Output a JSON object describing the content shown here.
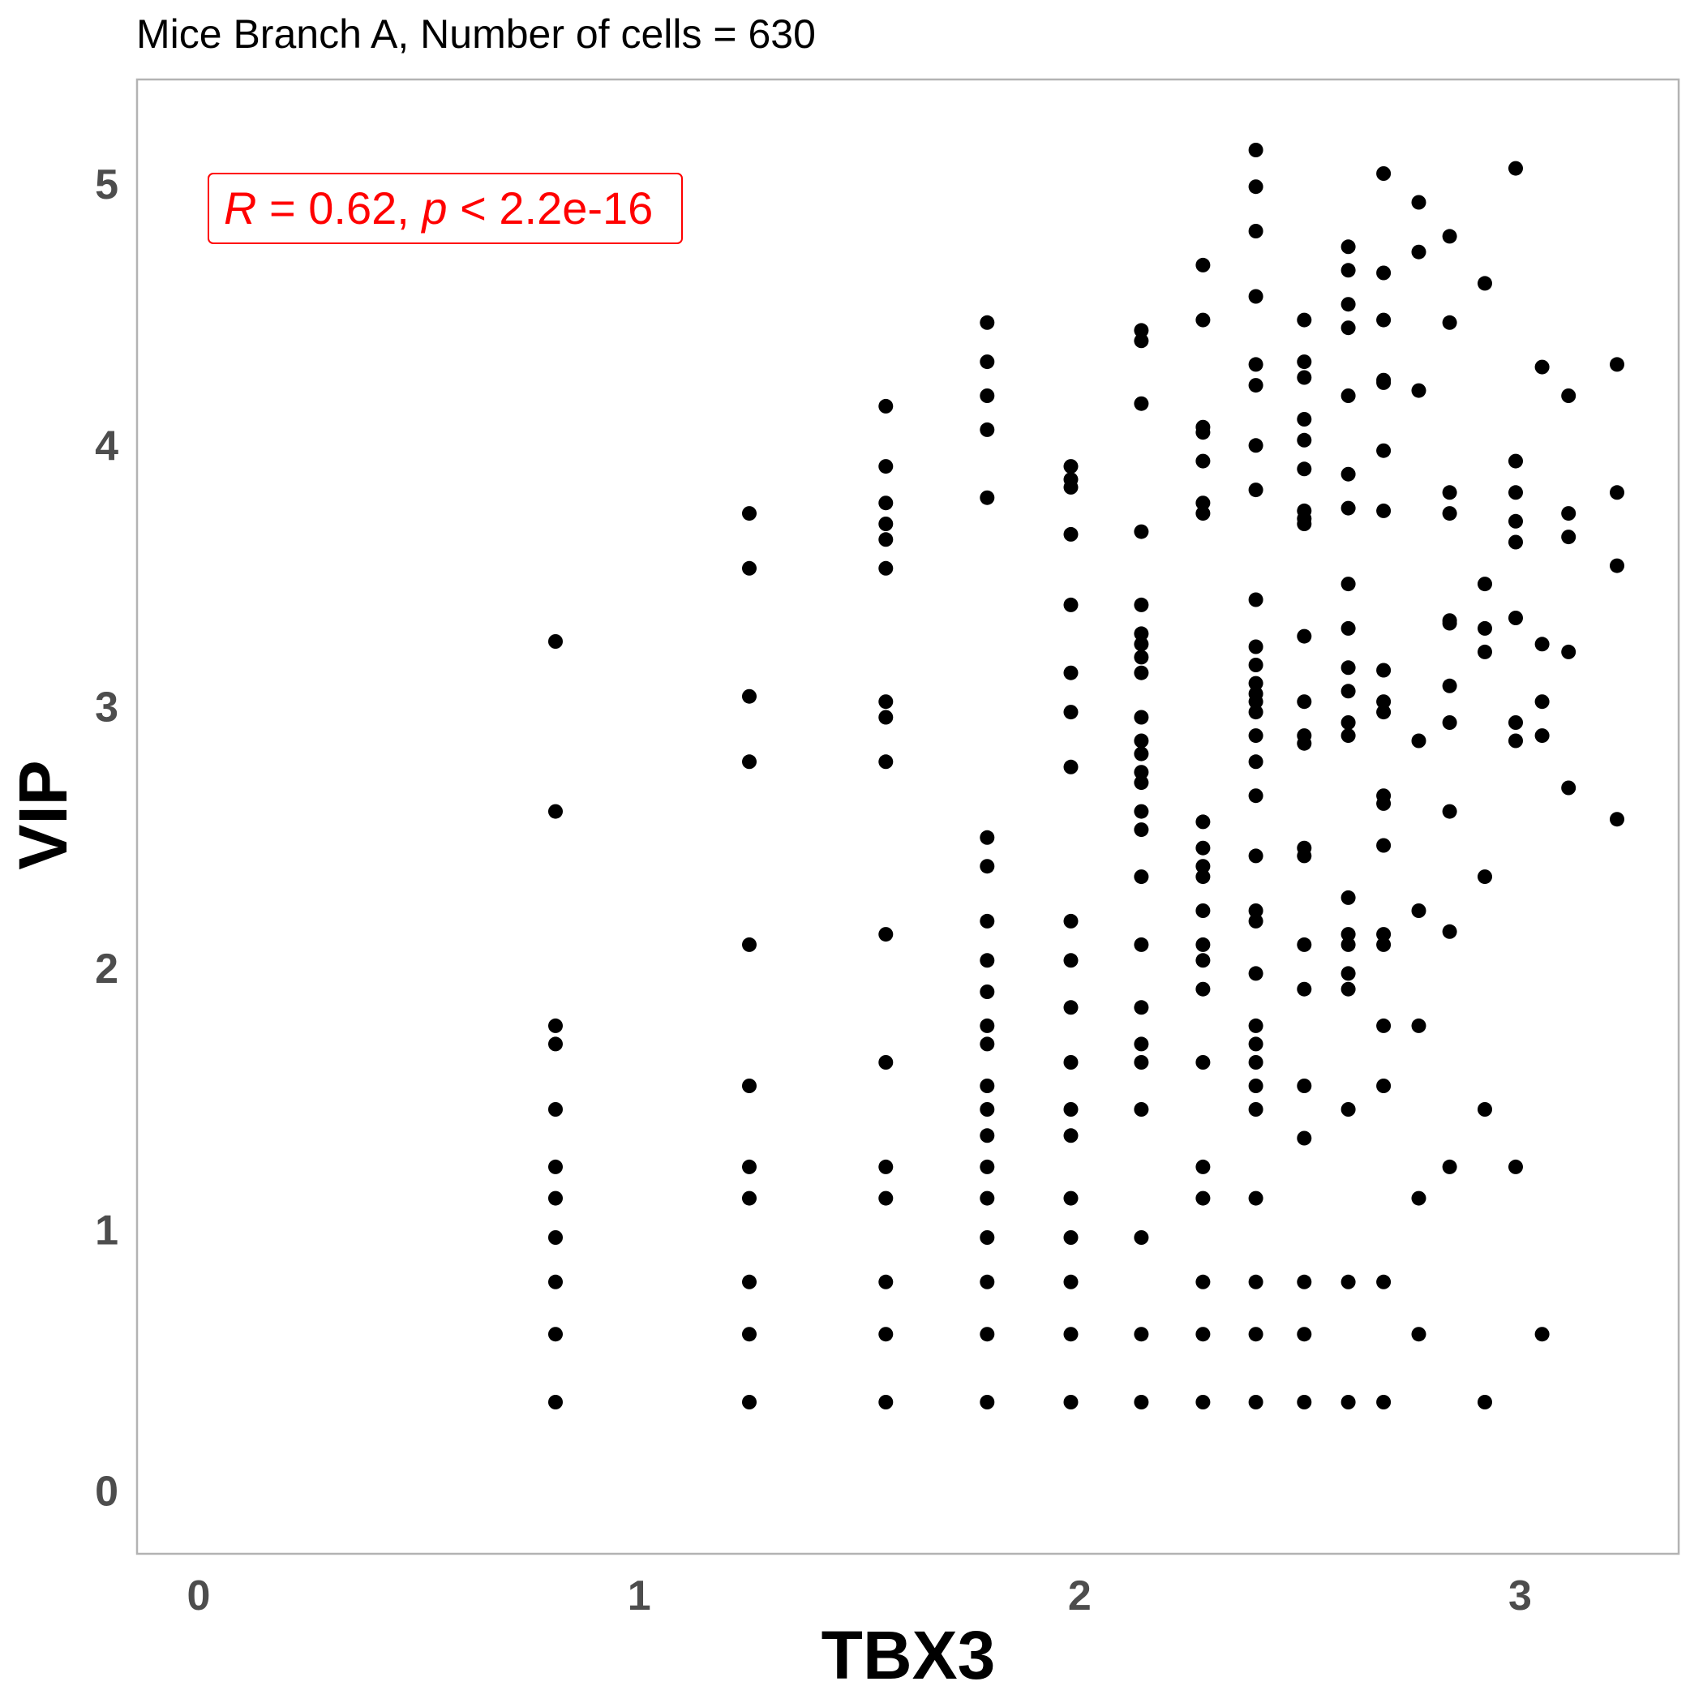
{
  "chart_data": {
    "type": "scatter",
    "title": "Mice Branch A, Number of cells = 630",
    "xlabel": "TBX3",
    "ylabel": "VIP",
    "xlim": [
      -0.14,
      3.36
    ],
    "ylim": [
      -0.24,
      5.4
    ],
    "x_ticks": [
      "0",
      "1",
      "2",
      "3"
    ],
    "y_ticks": [
      "0",
      "1",
      "2",
      "3",
      "4",
      "5"
    ],
    "grid": false,
    "point_color": "#000000",
    "annotation": {
      "r_label": "R",
      "r_text": " = 0.62, ",
      "p_label": "p",
      "p_text": " < 2.2e-16",
      "color": "#ff0000"
    },
    "points": [
      [
        0.81,
        3.25
      ],
      [
        0.81,
        2.6
      ],
      [
        0.81,
        1.78
      ],
      [
        0.81,
        1.71
      ],
      [
        0.81,
        1.46
      ],
      [
        0.81,
        1.24
      ],
      [
        0.81,
        1.12
      ],
      [
        0.81,
        0.97
      ],
      [
        0.81,
        0.8
      ],
      [
        0.81,
        0.6
      ],
      [
        0.81,
        0.34
      ],
      [
        1.25,
        3.74
      ],
      [
        1.25,
        3.53
      ],
      [
        1.25,
        3.04
      ],
      [
        1.25,
        2.79
      ],
      [
        1.25,
        2.09
      ],
      [
        1.25,
        1.55
      ],
      [
        1.25,
        1.24
      ],
      [
        1.25,
        1.12
      ],
      [
        1.25,
        0.8
      ],
      [
        1.25,
        0.6
      ],
      [
        1.25,
        0.34
      ],
      [
        1.56,
        4.15
      ],
      [
        1.56,
        3.92
      ],
      [
        1.56,
        3.78
      ],
      [
        1.56,
        3.7
      ],
      [
        1.56,
        3.64
      ],
      [
        1.56,
        3.53
      ],
      [
        1.56,
        3.02
      ],
      [
        1.56,
        2.96
      ],
      [
        1.56,
        2.79
      ],
      [
        1.56,
        2.13
      ],
      [
        1.56,
        1.64
      ],
      [
        1.56,
        1.24
      ],
      [
        1.56,
        1.12
      ],
      [
        1.56,
        0.8
      ],
      [
        1.56,
        0.6
      ],
      [
        1.56,
        0.34
      ],
      [
        1.79,
        4.47
      ],
      [
        1.79,
        4.32
      ],
      [
        1.79,
        4.19
      ],
      [
        1.79,
        4.06
      ],
      [
        1.79,
        3.8
      ],
      [
        1.79,
        2.5
      ],
      [
        1.79,
        2.39
      ],
      [
        1.79,
        2.18
      ],
      [
        1.79,
        2.03
      ],
      [
        1.79,
        1.91
      ],
      [
        1.79,
        1.78
      ],
      [
        1.79,
        1.71
      ],
      [
        1.79,
        1.55
      ],
      [
        1.79,
        1.46
      ],
      [
        1.79,
        1.36
      ],
      [
        1.79,
        1.24
      ],
      [
        1.79,
        1.12
      ],
      [
        1.79,
        0.97
      ],
      [
        1.79,
        0.8
      ],
      [
        1.79,
        0.6
      ],
      [
        1.79,
        0.34
      ],
      [
        1.98,
        3.92
      ],
      [
        1.98,
        3.87
      ],
      [
        1.98,
        3.84
      ],
      [
        1.98,
        3.66
      ],
      [
        1.98,
        3.39
      ],
      [
        1.98,
        3.13
      ],
      [
        1.98,
        2.98
      ],
      [
        1.98,
        2.77
      ],
      [
        1.98,
        2.18
      ],
      [
        1.98,
        2.03
      ],
      [
        1.98,
        1.85
      ],
      [
        1.98,
        1.64
      ],
      [
        1.98,
        1.46
      ],
      [
        1.98,
        1.36
      ],
      [
        1.98,
        1.12
      ],
      [
        1.98,
        0.97
      ],
      [
        1.98,
        0.8
      ],
      [
        1.98,
        0.6
      ],
      [
        1.98,
        0.34
      ],
      [
        2.14,
        4.44
      ],
      [
        2.14,
        4.4
      ],
      [
        2.14,
        4.16
      ],
      [
        2.14,
        3.67
      ],
      [
        2.14,
        3.39
      ],
      [
        2.14,
        3.28
      ],
      [
        2.14,
        3.24
      ],
      [
        2.14,
        3.19
      ],
      [
        2.14,
        3.13
      ],
      [
        2.14,
        2.96
      ],
      [
        2.14,
        2.87
      ],
      [
        2.14,
        2.82
      ],
      [
        2.14,
        2.75
      ],
      [
        2.14,
        2.71
      ],
      [
        2.14,
        2.6
      ],
      [
        2.14,
        2.53
      ],
      [
        2.14,
        2.35
      ],
      [
        2.14,
        2.09
      ],
      [
        2.14,
        1.85
      ],
      [
        2.14,
        1.71
      ],
      [
        2.14,
        1.64
      ],
      [
        2.14,
        1.46
      ],
      [
        2.14,
        0.97
      ],
      [
        2.14,
        0.6
      ],
      [
        2.14,
        0.34
      ],
      [
        2.28,
        4.69
      ],
      [
        2.28,
        4.48
      ],
      [
        2.28,
        4.07
      ],
      [
        2.28,
        4.05
      ],
      [
        2.28,
        3.94
      ],
      [
        2.28,
        3.78
      ],
      [
        2.28,
        3.74
      ],
      [
        2.28,
        2.56
      ],
      [
        2.28,
        2.46
      ],
      [
        2.28,
        2.39
      ],
      [
        2.28,
        2.35
      ],
      [
        2.28,
        2.22
      ],
      [
        2.28,
        2.09
      ],
      [
        2.28,
        2.03
      ],
      [
        2.28,
        1.92
      ],
      [
        2.28,
        1.64
      ],
      [
        2.28,
        1.24
      ],
      [
        2.28,
        1.12
      ],
      [
        2.28,
        0.8
      ],
      [
        2.28,
        0.6
      ],
      [
        2.28,
        0.34
      ],
      [
        2.4,
        5.13
      ],
      [
        2.4,
        4.99
      ],
      [
        2.4,
        4.82
      ],
      [
        2.4,
        4.57
      ],
      [
        2.4,
        4.31
      ],
      [
        2.4,
        4.23
      ],
      [
        2.4,
        4.0
      ],
      [
        2.4,
        3.83
      ],
      [
        2.4,
        3.41
      ],
      [
        2.4,
        3.23
      ],
      [
        2.4,
        3.16
      ],
      [
        2.4,
        3.09
      ],
      [
        2.4,
        3.05
      ],
      [
        2.4,
        3.02
      ],
      [
        2.4,
        2.98
      ],
      [
        2.4,
        2.89
      ],
      [
        2.4,
        2.79
      ],
      [
        2.4,
        2.66
      ],
      [
        2.4,
        2.43
      ],
      [
        2.4,
        2.22
      ],
      [
        2.4,
        2.18
      ],
      [
        2.4,
        1.98
      ],
      [
        2.4,
        1.78
      ],
      [
        2.4,
        1.71
      ],
      [
        2.4,
        1.64
      ],
      [
        2.4,
        1.55
      ],
      [
        2.4,
        1.46
      ],
      [
        2.4,
        1.12
      ],
      [
        2.4,
        0.8
      ],
      [
        2.4,
        0.6
      ],
      [
        2.4,
        0.34
      ],
      [
        2.51,
        4.48
      ],
      [
        2.51,
        4.32
      ],
      [
        2.51,
        4.26
      ],
      [
        2.51,
        4.1
      ],
      [
        2.51,
        4.02
      ],
      [
        2.51,
        3.91
      ],
      [
        2.51,
        3.75
      ],
      [
        2.51,
        3.72
      ],
      [
        2.51,
        3.7
      ],
      [
        2.51,
        3.27
      ],
      [
        2.51,
        3.02
      ],
      [
        2.51,
        2.89
      ],
      [
        2.51,
        2.86
      ],
      [
        2.51,
        2.46
      ],
      [
        2.51,
        2.43
      ],
      [
        2.51,
        2.09
      ],
      [
        2.51,
        1.92
      ],
      [
        2.51,
        1.55
      ],
      [
        2.51,
        1.35
      ],
      [
        2.51,
        0.8
      ],
      [
        2.51,
        0.6
      ],
      [
        2.51,
        0.34
      ],
      [
        2.61,
        4.76
      ],
      [
        2.61,
        4.67
      ],
      [
        2.61,
        4.54
      ],
      [
        2.61,
        4.45
      ],
      [
        2.61,
        4.19
      ],
      [
        2.61,
        3.89
      ],
      [
        2.61,
        3.76
      ],
      [
        2.61,
        3.47
      ],
      [
        2.61,
        3.3
      ],
      [
        2.61,
        3.15
      ],
      [
        2.61,
        3.06
      ],
      [
        2.61,
        2.94
      ],
      [
        2.61,
        2.89
      ],
      [
        2.61,
        2.27
      ],
      [
        2.61,
        2.13
      ],
      [
        2.61,
        2.09
      ],
      [
        2.61,
        1.98
      ],
      [
        2.61,
        1.92
      ],
      [
        2.61,
        1.46
      ],
      [
        2.61,
        0.8
      ],
      [
        2.61,
        0.34
      ],
      [
        2.69,
        5.04
      ],
      [
        2.69,
        4.66
      ],
      [
        2.69,
        4.48
      ],
      [
        2.69,
        4.25
      ],
      [
        2.69,
        4.24
      ],
      [
        2.69,
        3.98
      ],
      [
        2.69,
        3.75
      ],
      [
        2.69,
        3.14
      ],
      [
        2.69,
        3.02
      ],
      [
        2.69,
        2.98
      ],
      [
        2.69,
        2.66
      ],
      [
        2.69,
        2.63
      ],
      [
        2.69,
        2.47
      ],
      [
        2.69,
        2.13
      ],
      [
        2.69,
        2.09
      ],
      [
        2.69,
        1.78
      ],
      [
        2.69,
        1.55
      ],
      [
        2.69,
        0.8
      ],
      [
        2.69,
        0.34
      ],
      [
        2.77,
        4.93
      ],
      [
        2.77,
        4.74
      ],
      [
        2.77,
        4.21
      ],
      [
        2.77,
        2.87
      ],
      [
        2.77,
        2.22
      ],
      [
        2.77,
        1.78
      ],
      [
        2.77,
        1.12
      ],
      [
        2.77,
        0.6
      ],
      [
        2.84,
        4.8
      ],
      [
        2.84,
        4.47
      ],
      [
        2.84,
        3.82
      ],
      [
        2.84,
        3.74
      ],
      [
        2.84,
        3.33
      ],
      [
        2.84,
        3.32
      ],
      [
        2.84,
        3.08
      ],
      [
        2.84,
        2.94
      ],
      [
        2.84,
        2.6
      ],
      [
        2.84,
        2.14
      ],
      [
        2.84,
        1.24
      ],
      [
        2.92,
        4.62
      ],
      [
        2.92,
        3.47
      ],
      [
        2.92,
        3.3
      ],
      [
        2.92,
        3.21
      ],
      [
        2.92,
        2.35
      ],
      [
        2.92,
        1.46
      ],
      [
        2.92,
        0.34
      ],
      [
        2.99,
        5.06
      ],
      [
        2.99,
        3.94
      ],
      [
        2.99,
        3.82
      ],
      [
        2.99,
        3.71
      ],
      [
        2.99,
        3.63
      ],
      [
        2.99,
        3.34
      ],
      [
        2.99,
        2.94
      ],
      [
        2.99,
        2.87
      ],
      [
        2.99,
        1.24
      ],
      [
        3.05,
        4.3
      ],
      [
        3.05,
        3.24
      ],
      [
        3.05,
        3.02
      ],
      [
        3.05,
        2.89
      ],
      [
        3.05,
        0.6
      ],
      [
        3.11,
        4.19
      ],
      [
        3.11,
        3.74
      ],
      [
        3.11,
        3.65
      ],
      [
        3.11,
        3.21
      ],
      [
        3.11,
        2.69
      ],
      [
        3.22,
        4.31
      ],
      [
        3.22,
        3.82
      ],
      [
        3.22,
        3.54
      ],
      [
        3.22,
        2.57
      ]
    ]
  }
}
